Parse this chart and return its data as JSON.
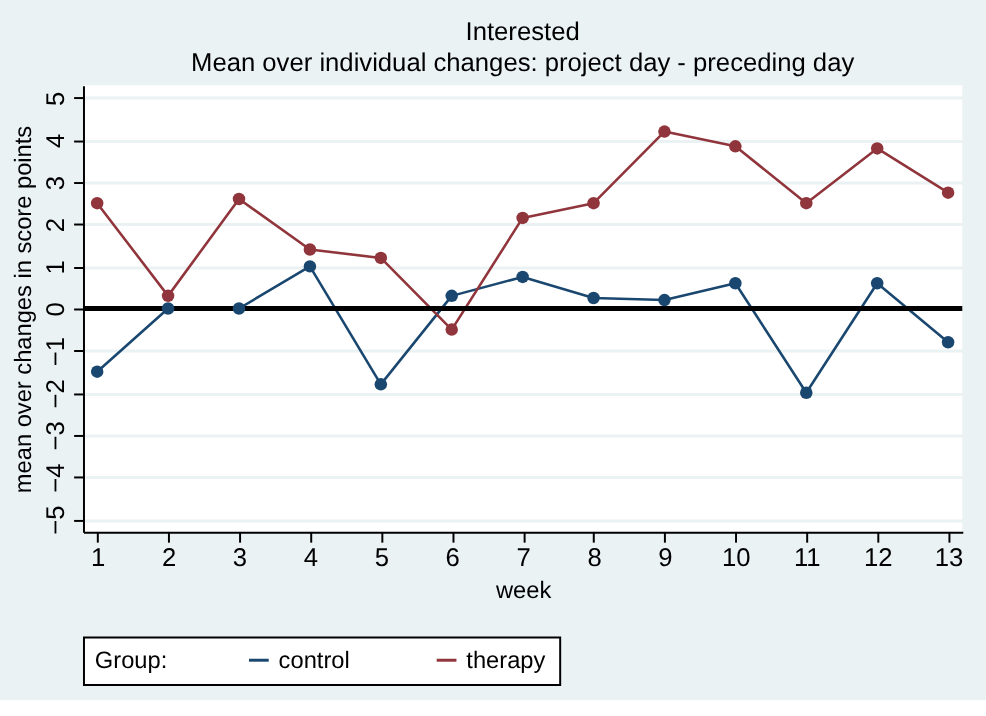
{
  "chart_data": {
    "type": "line",
    "title": "Interested",
    "subtitle": "Mean over individual  changes: project day - preceding day",
    "xlabel": "week",
    "ylabel": "mean over changes in score points",
    "legend_title": "Group:",
    "x": [
      1,
      2,
      3,
      4,
      5,
      6,
      7,
      8,
      9,
      10,
      11,
      12,
      13
    ],
    "series": [
      {
        "name": "control",
        "color": "#1a476f",
        "values": [
          -1.5,
          0,
          0,
          1,
          -1.8,
          0.3,
          0.75,
          0.25,
          0.2,
          0.6,
          -2,
          0.6,
          -0.8
        ]
      },
      {
        "name": "therapy",
        "color": "#90353b",
        "values": [
          2.5,
          0.3,
          2.6,
          1.4,
          1.2,
          -0.5,
          2.15,
          2.5,
          4.2,
          3.85,
          2.5,
          3.8,
          2.75
        ]
      }
    ],
    "xlim": [
      0.8,
      13.2
    ],
    "xticks": [
      1,
      2,
      3,
      4,
      5,
      6,
      7,
      8,
      9,
      10,
      11,
      12,
      13
    ],
    "ylim": [
      -5.3,
      5.3
    ],
    "yticks": [
      -5,
      -4,
      -3,
      -2,
      -1,
      0,
      1,
      2,
      3,
      4,
      5
    ],
    "ref_lines": [
      {
        "axis": "y",
        "value": 0,
        "color": "#000000"
      }
    ],
    "grid": "y",
    "legend": "bottom",
    "marker": "circle",
    "line_style": "solid"
  }
}
